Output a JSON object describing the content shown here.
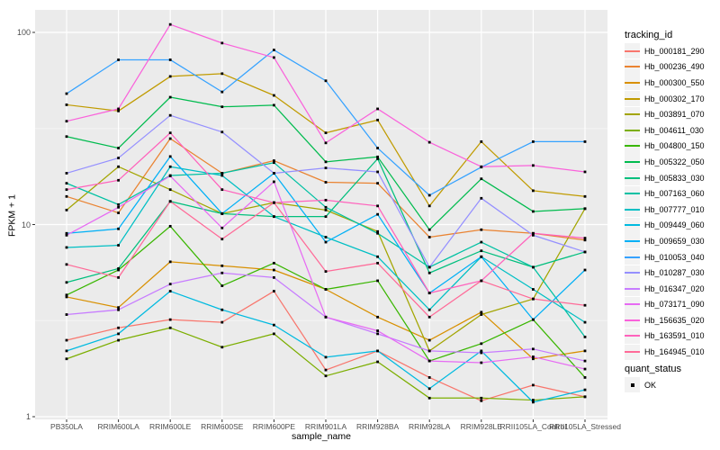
{
  "figure": {
    "background": "#FFFFFF",
    "panel_background": "#EBEBEB",
    "grid_major_color": "#FFFFFF",
    "grid_minor_opacity": 0.5,
    "tick_mark_color": "#333333",
    "tick_text_color": "#4D4D4D",
    "axis_title_color": "#000000",
    "point_color": "#000000"
  },
  "legend": {
    "tracking_title": "tracking_id",
    "quant_title": "quant_status",
    "quant_value": "OK",
    "key_background": "#F2F2F2"
  },
  "chart_data": {
    "type": "line",
    "title": "",
    "xlabel": "sample_name",
    "ylabel": "FPKM + 1",
    "y_scale": "log10",
    "y_ticks": [
      1,
      10,
      100
    ],
    "y_minor_ticks": [
      3.1623,
      31.623
    ],
    "ylim": [
      0.97,
      125
    ],
    "grid": true,
    "legend_position": "right",
    "point_shape": "square",
    "categories": [
      "PB350LA",
      "RRIM600LA",
      "RRIM600LE",
      "RRIM600SE",
      "RRIM600PE",
      "RRIM901LA",
      "RRIM928BA",
      "RRIM928LA",
      "RRIM928LE",
      "RRII105LA_Control",
      "RRII105LA_Stressed"
    ],
    "series": [
      {
        "name": "Hb_000181_290",
        "color": "#F8766D",
        "values": [
          2.5,
          2.9,
          3.2,
          3.1,
          4.5,
          1.75,
          2.2,
          1.6,
          1.21,
          1.46,
          1.27
        ]
      },
      {
        "name": "Hb_000236_490",
        "color": "#EA8331",
        "values": [
          14,
          11.5,
          28,
          18.5,
          21.5,
          16.6,
          16.4,
          8.6,
          9.4,
          9.0,
          8.3
        ]
      },
      {
        "name": "Hb_000300_550",
        "color": "#D89000",
        "values": [
          4.2,
          3.7,
          6.4,
          6.1,
          5.8,
          4.6,
          3.3,
          2.5,
          3.5,
          2.0,
          2.2
        ]
      },
      {
        "name": "Hb_000302_170",
        "color": "#C09B00",
        "values": [
          42,
          39,
          59,
          61,
          47,
          30,
          35,
          12.5,
          27,
          15,
          14
        ]
      },
      {
        "name": "Hb_003891_070",
        "color": "#A3A500",
        "values": [
          11.9,
          20,
          15.2,
          11.4,
          13,
          11.9,
          9.2,
          2.2,
          3.4,
          4.1,
          12.1
        ]
      },
      {
        "name": "Hb_004611_030",
        "color": "#7CAE00",
        "values": [
          2.0,
          2.5,
          2.9,
          2.3,
          2.7,
          1.63,
          1.93,
          1.25,
          1.25,
          1.22,
          1.27
        ]
      },
      {
        "name": "Hb_004800_150",
        "color": "#39B600",
        "values": [
          4.3,
          5.8,
          9.8,
          4.8,
          6.3,
          4.6,
          5.1,
          1.95,
          2.4,
          3.2,
          1.6
        ]
      },
      {
        "name": "Hb_005322_050",
        "color": "#00BB4E",
        "values": [
          28.7,
          25,
          46,
          41,
          41.8,
          21.2,
          22.5,
          9.4,
          17.3,
          11.7,
          12.1
        ]
      },
      {
        "name": "Hb_005833_030",
        "color": "#00BF7D",
        "values": [
          5.0,
          5.9,
          13.2,
          11.4,
          11.0,
          11.0,
          22.0,
          5.6,
          7.3,
          6.0,
          7.2
        ]
      },
      {
        "name": "Hb_007163_060",
        "color": "#00C1A3",
        "values": [
          16.4,
          12.7,
          18,
          18.5,
          21,
          12.3,
          9.0,
          6.0,
          8.1,
          6.0,
          2.6
        ]
      },
      {
        "name": "Hb_007777_010",
        "color": "#00BFC4",
        "values": [
          7.6,
          7.8,
          20,
          18.0,
          11.0,
          8.6,
          6.8,
          3.6,
          6.8,
          4.6,
          3.1
        ]
      },
      {
        "name": "Hb_009449_060",
        "color": "#00BAE0",
        "values": [
          2.2,
          2.7,
          4.5,
          3.6,
          3.0,
          2.04,
          2.2,
          1.4,
          2.2,
          1.19,
          1.38
        ]
      },
      {
        "name": "Hb_009659_030",
        "color": "#00B0F6",
        "values": [
          9.0,
          9.5,
          22.6,
          11.4,
          18.5,
          8.1,
          11.3,
          4.4,
          6.8,
          3.2,
          5.8
        ]
      },
      {
        "name": "Hb_010053_040",
        "color": "#35A2FF",
        "values": [
          48,
          72,
          72,
          49,
          81,
          56,
          25,
          14.2,
          19.9,
          27,
          27
        ]
      },
      {
        "name": "Hb_010287_030",
        "color": "#9590FF",
        "values": [
          18.5,
          22.2,
          37,
          30.3,
          18.5,
          19.7,
          18.8,
          6.0,
          13.7,
          8.8,
          7.2
        ]
      },
      {
        "name": "Hb_016347_020",
        "color": "#C77CFF",
        "values": [
          3.4,
          3.6,
          4.9,
          5.6,
          5.3,
          3.3,
          2.7,
          2.2,
          2.15,
          2.25,
          1.95
        ]
      },
      {
        "name": "Hb_073171_090",
        "color": "#E76BF3",
        "values": [
          8.8,
          12.3,
          17.9,
          9.6,
          16.7,
          3.3,
          2.8,
          1.95,
          1.91,
          2.05,
          1.77
        ]
      },
      {
        "name": "Hb_156635_020",
        "color": "#FA62DB",
        "values": [
          34.5,
          40,
          110,
          88,
          74,
          26.6,
          40,
          26.8,
          20,
          20.3,
          18.8
        ]
      },
      {
        "name": "Hb_163591_010",
        "color": "#FF62BC",
        "values": [
          15.2,
          17,
          30,
          15.2,
          13,
          13.4,
          12.5,
          4.4,
          5.1,
          9.0,
          8.5
        ]
      },
      {
        "name": "Hb_164945_010",
        "color": "#FF6A98",
        "values": [
          6.2,
          5.3,
          13.2,
          8.4,
          13,
          5.7,
          6.3,
          3.3,
          5.1,
          4.1,
          3.8
        ]
      }
    ]
  }
}
